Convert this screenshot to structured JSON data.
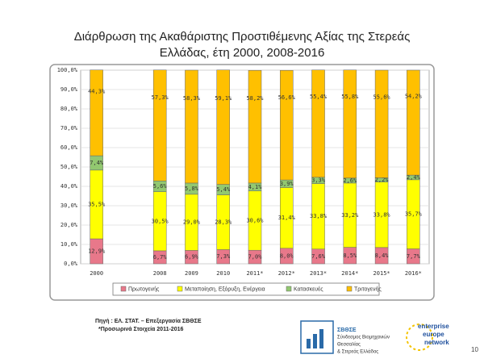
{
  "title_lines": [
    "Διάρθρωση της Ακαθάριστης Προστιθέμενης Αξίας της Στερεάς",
    "Ελλάδας, έτη 2000, 2008-2016"
  ],
  "chart_data": {
    "type": "stacked_bar",
    "categories": [
      "2000",
      null,
      "2008",
      "2009",
      "2010",
      "2011*",
      "2012*",
      "2013*",
      "2014*",
      "2015*",
      "2016*"
    ],
    "series": [
      {
        "name": "Πρωτογενής",
        "color": "#e8788a",
        "values": [
          12.9,
          null,
          6.7,
          6.9,
          7.3,
          7.0,
          8.0,
          7.6,
          8.5,
          8.4,
          7.7
        ],
        "value_labels": [
          "12,9%",
          null,
          "6,7%",
          "6,9%",
          "7,3%",
          "7,0%",
          "8,0%",
          "7,6%",
          "8,5%",
          "8,4%",
          "7,7%"
        ]
      },
      {
        "name": "Μεταποίηση, Εξόρυξη, Ενέργεια",
        "color": "#ffff00",
        "values": [
          35.5,
          null,
          30.5,
          29.0,
          28.3,
          30.6,
          31.4,
          33.8,
          33.2,
          33.8,
          35.7
        ],
        "value_labels": [
          "35,5%",
          null,
          "30,5%",
          "29,0%",
          "28,3%",
          "30,6%",
          "31,4%",
          "33,8%",
          "33,2%",
          "33,8%",
          "35,7%"
        ]
      },
      {
        "name": "Κατασκευές",
        "color": "#92c870",
        "values": [
          7.4,
          null,
          5.6,
          5.8,
          5.4,
          4.1,
          3.9,
          3.3,
          2.6,
          2.2,
          2.4
        ],
        "value_labels": [
          "7,4%",
          null,
          "5,6%",
          "5,8%",
          "5,4%",
          "4,1%",
          "3,9%",
          "3,3%",
          "2,6%",
          "2,2%",
          "2,4%"
        ]
      },
      {
        "name": "Τριτογενής",
        "color": "#ffc000",
        "values": [
          44.3,
          null,
          57.3,
          58.3,
          59.1,
          58.2,
          56.6,
          55.4,
          55.8,
          55.6,
          54.2
        ],
        "value_labels": [
          "44,3%",
          null,
          "57,3%",
          "58,3%",
          "59,1%",
          "58,2%",
          "56,6%",
          "55,4%",
          "55,8%",
          "55,6%",
          "54,2%"
        ]
      }
    ],
    "ylim": [
      0,
      100
    ],
    "yticks": [
      {
        "value": 0,
        "label": "0,0%"
      },
      {
        "value": 10,
        "label": "10,0%"
      },
      {
        "value": 20,
        "label": "20,0%"
      },
      {
        "value": 30,
        "label": "30,0%"
      },
      {
        "value": 40,
        "label": "40,0%"
      },
      {
        "value": 50,
        "label": "50,0%"
      },
      {
        "value": 60,
        "label": "60,0%"
      },
      {
        "value": 70,
        "label": "70,0%"
      },
      {
        "value": 80,
        "label": "80,0%"
      },
      {
        "value": 90,
        "label": "90,0%"
      },
      {
        "value": 100,
        "label": "100,0%"
      }
    ],
    "grid": true
  },
  "source": "Πηγή : ΕΛ. ΣΤΑΤ. – Επεξεργασία ΣΒΘΣΕ",
  "note": "*Προσωρινά Στοιχεία 2011-2016",
  "logo_sbthse": [
    "ΣΒΘΣΕ",
    "Σύνδεσμος Βιομηχανιών",
    "Θεσσαλίας",
    "& Στερεάς Ελλάδος"
  ],
  "logo_een": [
    "enterprise",
    "europe",
    "network"
  ],
  "page_number": "10"
}
